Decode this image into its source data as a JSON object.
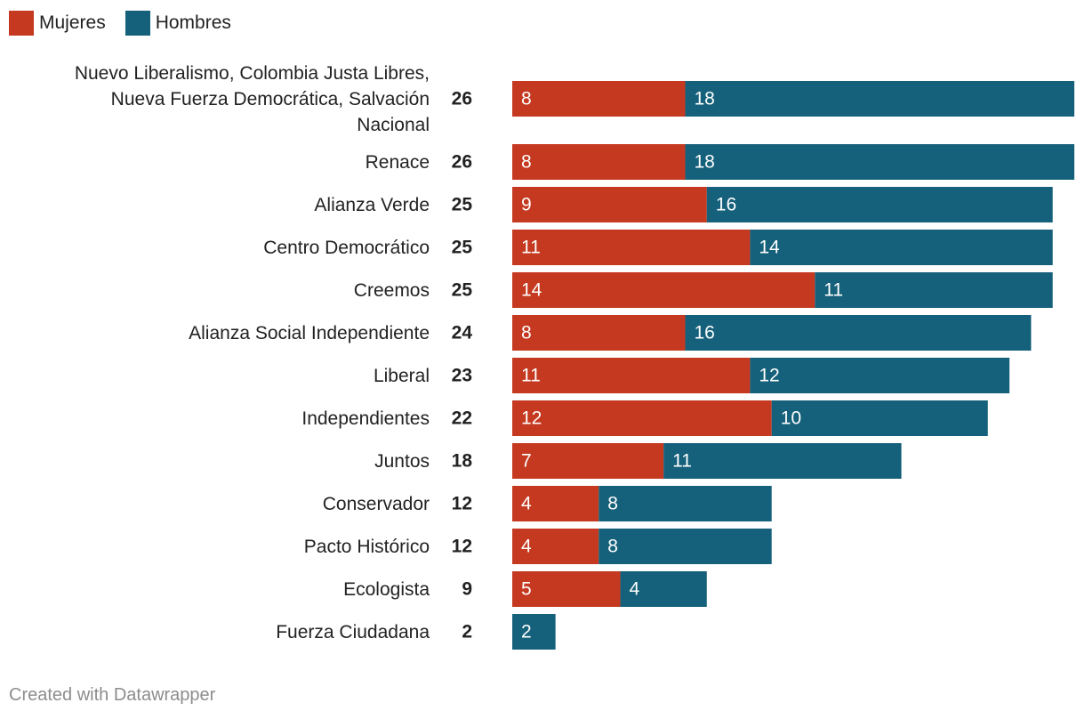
{
  "chart_data": {
    "type": "bar",
    "orientation": "horizontal",
    "stacked": true,
    "categories": [
      "Nuevo Liberalismo, Colombia Justa Libres, Nueva Fuerza Democrática, Salvación Nacional",
      "Renace",
      "Alianza Verde",
      "Centro Democrático",
      "Creemos",
      "Alianza Social Independiente",
      "Liberal",
      "Independientes",
      "Juntos",
      "Conservador",
      "Pacto Histórico",
      "Ecologista",
      "Fuerza Ciudadana"
    ],
    "totals": [
      26,
      26,
      25,
      25,
      25,
      24,
      23,
      22,
      18,
      12,
      12,
      9,
      2
    ],
    "series": [
      {
        "name": "Mujeres",
        "color": "#c4391f",
        "values": [
          8,
          8,
          9,
          11,
          14,
          8,
          11,
          12,
          7,
          4,
          4,
          5,
          0
        ]
      },
      {
        "name": "Hombres",
        "color": "#15607a",
        "values": [
          18,
          18,
          16,
          14,
          11,
          16,
          12,
          10,
          11,
          8,
          8,
          4,
          2
        ]
      }
    ],
    "xlim": [
      0,
      26
    ],
    "title": "",
    "xlabel": "",
    "ylabel": ""
  },
  "legend": [
    {
      "label": "Mujeres",
      "color": "#c4391f"
    },
    {
      "label": "Hombres",
      "color": "#15607a"
    }
  ],
  "footer": "Created with Datawrapper"
}
